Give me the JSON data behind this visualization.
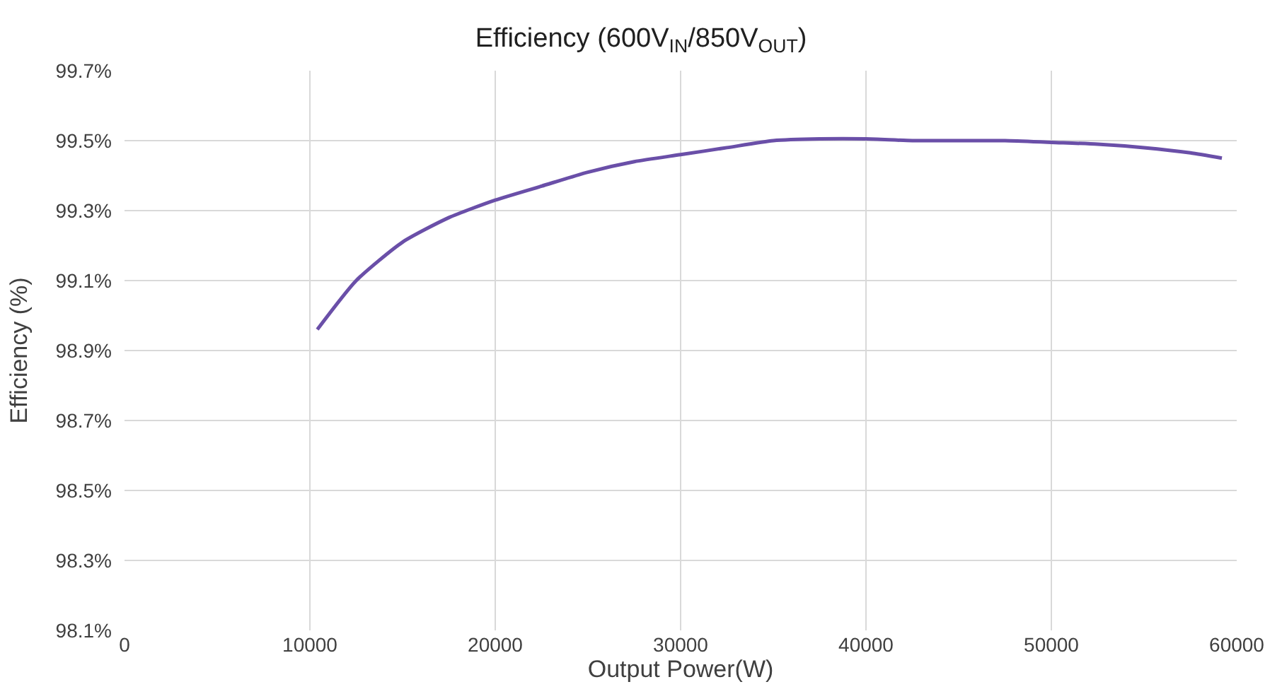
{
  "chart_data": {
    "type": "line",
    "title": "Efficiency (600V$_{IN}$/850V$_{OUT}$)",
    "xlabel": "Output Power(W)",
    "ylabel": "Efficiency (%)",
    "x": [
      10400,
      12500,
      15000,
      17500,
      20000,
      22500,
      25000,
      27500,
      30000,
      32500,
      35000,
      37500,
      40000,
      42500,
      45000,
      47500,
      50000,
      52500,
      55000,
      57500,
      59200
    ],
    "series": [
      {
        "color": "#6a4fa8",
        "values": [
          98.96,
          99.1,
          99.21,
          99.28,
          99.33,
          99.37,
          99.41,
          99.44,
          99.46,
          99.48,
          99.5,
          99.505,
          99.505,
          99.5,
          99.5,
          99.5,
          99.495,
          99.49,
          99.48,
          99.465,
          99.45
        ]
      }
    ],
    "xlim": [
      0,
      60000
    ],
    "xticks": [
      0,
      10000,
      20000,
      30000,
      40000,
      50000,
      60000
    ],
    "ylim": [
      98.1,
      99.7
    ],
    "yticks": [
      {
        "value": 98.1,
        "label": "98.1%"
      },
      {
        "value": 98.3,
        "label": "98.3%"
      },
      {
        "value": 98.5,
        "label": "98.5%"
      },
      {
        "value": 98.7,
        "label": "98.7%"
      },
      {
        "value": 98.9,
        "label": "98.9%"
      },
      {
        "value": 99.1,
        "label": "99.1%"
      },
      {
        "value": 99.3,
        "label": "99.3%"
      },
      {
        "value": 99.5,
        "label": "99.5%"
      },
      {
        "value": 99.7,
        "label": "99.7%"
      }
    ],
    "grid": true,
    "marker": "none",
    "line_style": "solid"
  }
}
